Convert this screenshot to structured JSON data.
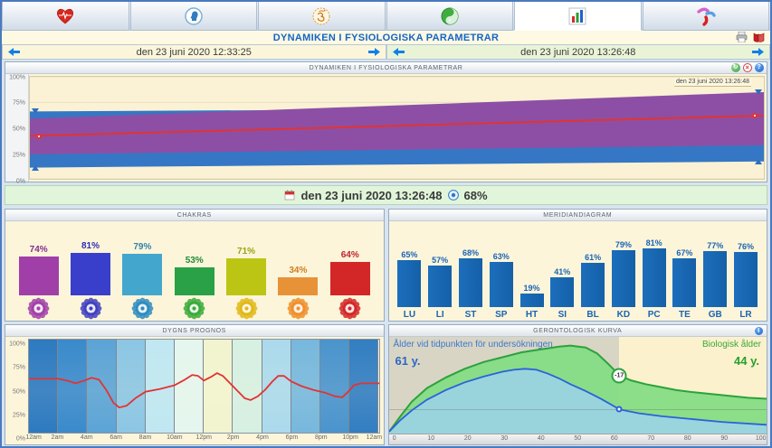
{
  "header": {
    "title": "DYNAMIKEN I FYSIOLOGISKA PARAMETRAR"
  },
  "tabs": [
    {
      "icon": "heart-ecg-icon",
      "active": false
    },
    {
      "icon": "head-profile-icon",
      "active": false
    },
    {
      "icon": "om-icon",
      "active": false
    },
    {
      "icon": "yin-yang-icon",
      "active": false
    },
    {
      "icon": "bar-chart-icon",
      "active": true
    },
    {
      "icon": "meridian-man-icon",
      "active": false
    }
  ],
  "date_nav": {
    "left": {
      "label": "den 23 juni 2020 12:33:25"
    },
    "right": {
      "label": "den 23 juni 2020 13:26:48"
    }
  },
  "status_bar": {
    "date": "den 23 juni 2020 13:26:48",
    "percent": "68%"
  },
  "panels": {
    "dynamics": {
      "title": "DYNAMIKEN I FYSIOLOGISKA PARAMETRAR",
      "date_label": "den 23 juni 2020 13:26:48",
      "y_ticks": [
        "100%",
        "75%",
        "50%",
        "25%",
        "0%"
      ]
    },
    "chakras": {
      "title": "CHAKRAS"
    },
    "meridians": {
      "title": "MERIDIANDIAGRAM"
    },
    "forecast": {
      "title": "DYGNS PROGNOS",
      "y_ticks": [
        "100%",
        "75%",
        "50%",
        "25%",
        "0%"
      ]
    },
    "gerontology": {
      "title": "GERONTOLOGISK KURVA",
      "left_label": "Ålder vid tidpunkten för undersökningen",
      "left_value": "61 y.",
      "right_label": "Biologisk ålder",
      "right_value": "44 y.",
      "marker": "-17"
    }
  },
  "chart_data": [
    {
      "id": "dynamics",
      "type": "area",
      "title": "DYNAMIKEN I FYSIOLOGISKA PARAMETRAR",
      "ylim": [
        0,
        100
      ],
      "x_range": [
        "den 23 juni 2020 12:33:25",
        "den 23 juni 2020 13:26:48"
      ],
      "grid_levels": [
        0,
        25,
        50,
        75,
        100
      ],
      "series": [
        {
          "name": "outer-range-band",
          "color": "#3577c4",
          "start": {
            "low": 11,
            "high": 66
          },
          "end": {
            "low": 17,
            "high": 70
          }
        },
        {
          "name": "inner-range-band",
          "color": "#8d4fa5",
          "start": {
            "low": 24,
            "high": 59
          },
          "end": {
            "low": 33,
            "high": 85
          }
        },
        {
          "name": "trend-line",
          "color": "#e23333",
          "start": 42,
          "end": 62
        }
      ]
    },
    {
      "id": "chakras",
      "type": "bar",
      "title": "CHAKRAS",
      "ylim": [
        0,
        100
      ],
      "icons": [
        "crown-chakra-icon",
        "third-eye-chakra-icon",
        "throat-chakra-icon",
        "heart-chakra-icon",
        "solar-plexus-chakra-icon",
        "sacral-chakra-icon",
        "root-chakra-icon"
      ],
      "values": [
        74,
        81,
        79,
        53,
        71,
        34,
        64
      ],
      "bar_colors": [
        "#a13fa8",
        "#3a3fcb",
        "#43a6cd",
        "#2aa146",
        "#bcc513",
        "#e89238",
        "#d32727"
      ],
      "label_colors": [
        "#83308d",
        "#2d2db8",
        "#2e84ad",
        "#1f8a3a",
        "#97a50f",
        "#cf7d1f",
        "#c3202e"
      ],
      "icon_colors": [
        "#a13fa8",
        "#4040c0",
        "#2e8cbf",
        "#3aaa3a",
        "#e0b818",
        "#ef8f2a",
        "#d32727"
      ]
    },
    {
      "id": "meridians",
      "type": "bar",
      "title": "MERIDIANDIAGRAM",
      "ylim": [
        0,
        100
      ],
      "categories": [
        "LU",
        "LI",
        "ST",
        "SP",
        "HT",
        "SI",
        "BL",
        "KD",
        "PC",
        "TE",
        "GB",
        "LR"
      ],
      "values": [
        65,
        57,
        68,
        63,
        19,
        41,
        61,
        79,
        81,
        67,
        77,
        76
      ],
      "bar_color": "#1a6ab8",
      "label_color": "#1a64b4"
    },
    {
      "id": "forecast",
      "type": "line",
      "title": "DYGNS PROGNOS",
      "ylim": [
        0,
        100
      ],
      "x_labels": [
        "12am",
        "2am",
        "4am",
        "6am",
        "8am",
        "10am",
        "12pm",
        "2pm",
        "4pm",
        "6pm",
        "8pm",
        "10pm",
        "12am"
      ],
      "line_color": "#e23333",
      "segment_colors": [
        "#2d7ac0",
        "#3a8acc",
        "#5ca4d6",
        "#8cc6e4",
        "#bfe7f2",
        "#e4f6ee",
        "#f2f4cf",
        "#d6f0e2",
        "#abdaec",
        "#77b8dd",
        "#4a94cd",
        "#327ec2"
      ],
      "points": [
        [
          0,
          58
        ],
        [
          1,
          58
        ],
        [
          2,
          58
        ],
        [
          2.6,
          56
        ],
        [
          3.2,
          53
        ],
        [
          3.8,
          56
        ],
        [
          4.3,
          59
        ],
        [
          4.8,
          57
        ],
        [
          5.3,
          46
        ],
        [
          5.8,
          32
        ],
        [
          6.2,
          27
        ],
        [
          6.7,
          29
        ],
        [
          7.3,
          37
        ],
        [
          8,
          44
        ],
        [
          9,
          47
        ],
        [
          10,
          51
        ],
        [
          10.7,
          57
        ],
        [
          11.2,
          62
        ],
        [
          11.6,
          61
        ],
        [
          12,
          56
        ],
        [
          12.5,
          60
        ],
        [
          12.9,
          64
        ],
        [
          13.3,
          61
        ],
        [
          13.8,
          53
        ],
        [
          14.3,
          45
        ],
        [
          14.8,
          37
        ],
        [
          15.2,
          35
        ],
        [
          15.7,
          39
        ],
        [
          16.2,
          46
        ],
        [
          16.7,
          55
        ],
        [
          17.1,
          61
        ],
        [
          17.5,
          61
        ],
        [
          18,
          55
        ],
        [
          18.7,
          50
        ],
        [
          19.5,
          46
        ],
        [
          20.3,
          43
        ],
        [
          21,
          39
        ],
        [
          21.5,
          38
        ],
        [
          21.9,
          44
        ],
        [
          22.3,
          51
        ],
        [
          22.8,
          53
        ],
        [
          23.4,
          53
        ],
        [
          24,
          53
        ]
      ]
    },
    {
      "id": "gerontology",
      "type": "area",
      "title": "GERONTOLOGISK KURVA",
      "current_age": 61,
      "biological_age": 44,
      "difference": -17,
      "x_ticks": [
        0,
        10,
        20,
        30,
        40,
        50,
        60,
        70,
        80,
        90,
        100
      ],
      "divide_x": 61,
      "series": [
        {
          "name": "biological-age-curve",
          "color": "#2ca23c",
          "fill": "#82dc82",
          "points": [
            [
              0,
              2
            ],
            [
              3,
              18
            ],
            [
              6,
              33
            ],
            [
              10,
              47
            ],
            [
              15,
              58
            ],
            [
              20,
              67
            ],
            [
              25,
              74
            ],
            [
              30,
              79
            ],
            [
              35,
              84
            ],
            [
              40,
              87
            ],
            [
              45,
              90
            ],
            [
              48,
              91
            ],
            [
              52,
              89
            ],
            [
              55,
              83
            ],
            [
              58,
              72
            ],
            [
              61,
              60
            ],
            [
              64,
              55
            ],
            [
              68,
              51
            ],
            [
              72,
              48
            ],
            [
              76,
              45
            ],
            [
              80,
              43
            ],
            [
              85,
              41
            ],
            [
              90,
              39
            ],
            [
              95,
              37
            ],
            [
              100,
              36
            ]
          ]
        },
        {
          "name": "chronological-age-curve",
          "color": "#2b62d9",
          "fill": "#9cd2ec",
          "points": [
            [
              0,
              2
            ],
            [
              3,
              14
            ],
            [
              6,
              24
            ],
            [
              10,
              35
            ],
            [
              15,
              45
            ],
            [
              20,
              53
            ],
            [
              25,
              59
            ],
            [
              30,
              64
            ],
            [
              33,
              66
            ],
            [
              36,
              67
            ],
            [
              39,
              66
            ],
            [
              42,
              62
            ],
            [
              45,
              57
            ],
            [
              48,
              51
            ],
            [
              52,
              44
            ],
            [
              56,
              36
            ],
            [
              61,
              25
            ],
            [
              66,
              21
            ],
            [
              72,
              18
            ],
            [
              80,
              15
            ],
            [
              88,
              12
            ],
            [
              100,
              9
            ]
          ]
        }
      ],
      "marker_at": {
        "x": 61,
        "green_y": 60,
        "blue_y": 25
      }
    }
  ]
}
